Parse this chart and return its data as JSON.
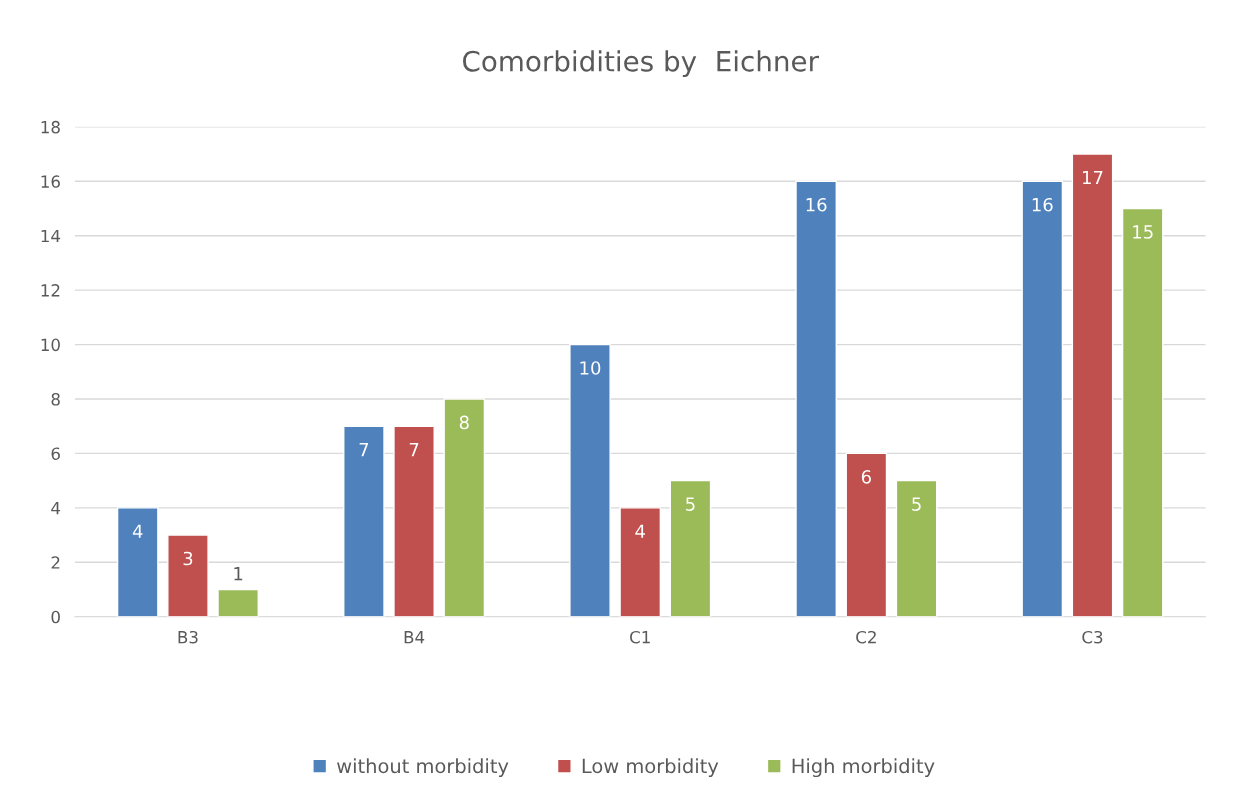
{
  "chart_data": {
    "type": "bar",
    "title": "Comorbidities by  Eichner",
    "categories": [
      "B3",
      "B4",
      "C1",
      "C2",
      "C3"
    ],
    "series": [
      {
        "name": "without morbidity",
        "color": "#4f81bd",
        "values": [
          4,
          7,
          10,
          16,
          16
        ]
      },
      {
        "name": "Low morbidity",
        "color": "#c0504d",
        "values": [
          3,
          7,
          4,
          6,
          17
        ]
      },
      {
        "name": "High morbidity",
        "color": "#9bbb59",
        "values": [
          1,
          8,
          5,
          5,
          15
        ]
      }
    ],
    "ylim": [
      0,
      18
    ],
    "yticks": [
      0,
      2,
      4,
      6,
      8,
      10,
      12,
      14,
      16,
      18
    ],
    "grid": "y",
    "legend": "bottom",
    "data_labels": true
  }
}
